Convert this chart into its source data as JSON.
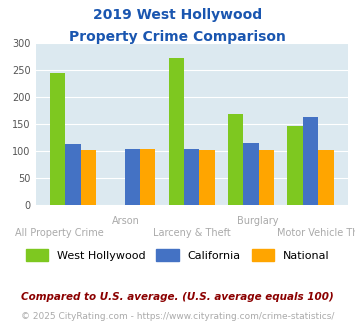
{
  "title_line1": "2019 West Hollywood",
  "title_line2": "Property Crime Comparison",
  "title_color": "#1a56b0",
  "categories": [
    "All Property Crime",
    "Arson",
    "Larceny & Theft",
    "Burglary",
    "Motor Vehicle Theft"
  ],
  "top_labels": {
    "1": "Arson",
    "3": "Burglary"
  },
  "bottom_labels": {
    "0": "All Property Crime",
    "2": "Larceny & Theft",
    "4": "Motor Vehicle Theft"
  },
  "west_hollywood": [
    244,
    0,
    272,
    168,
    145
  ],
  "california": [
    112,
    104,
    103,
    114,
    163
  ],
  "national": [
    102,
    103,
    102,
    102,
    102
  ],
  "wh_color": "#7ec820",
  "ca_color": "#4472c4",
  "nat_color": "#ffa500",
  "bg_color": "#dce9f0",
  "ylim": [
    0,
    300
  ],
  "yticks": [
    0,
    50,
    100,
    150,
    200,
    250,
    300
  ],
  "legend_labels": [
    "West Hollywood",
    "California",
    "National"
  ],
  "footnote1": "Compared to U.S. average. (U.S. average equals 100)",
  "footnote2": "© 2025 CityRating.com - https://www.cityrating.com/crime-statistics/",
  "footnote1_color": "#8b0000",
  "footnote2_color": "#aaaaaa",
  "label_color": "#aaaaaa"
}
